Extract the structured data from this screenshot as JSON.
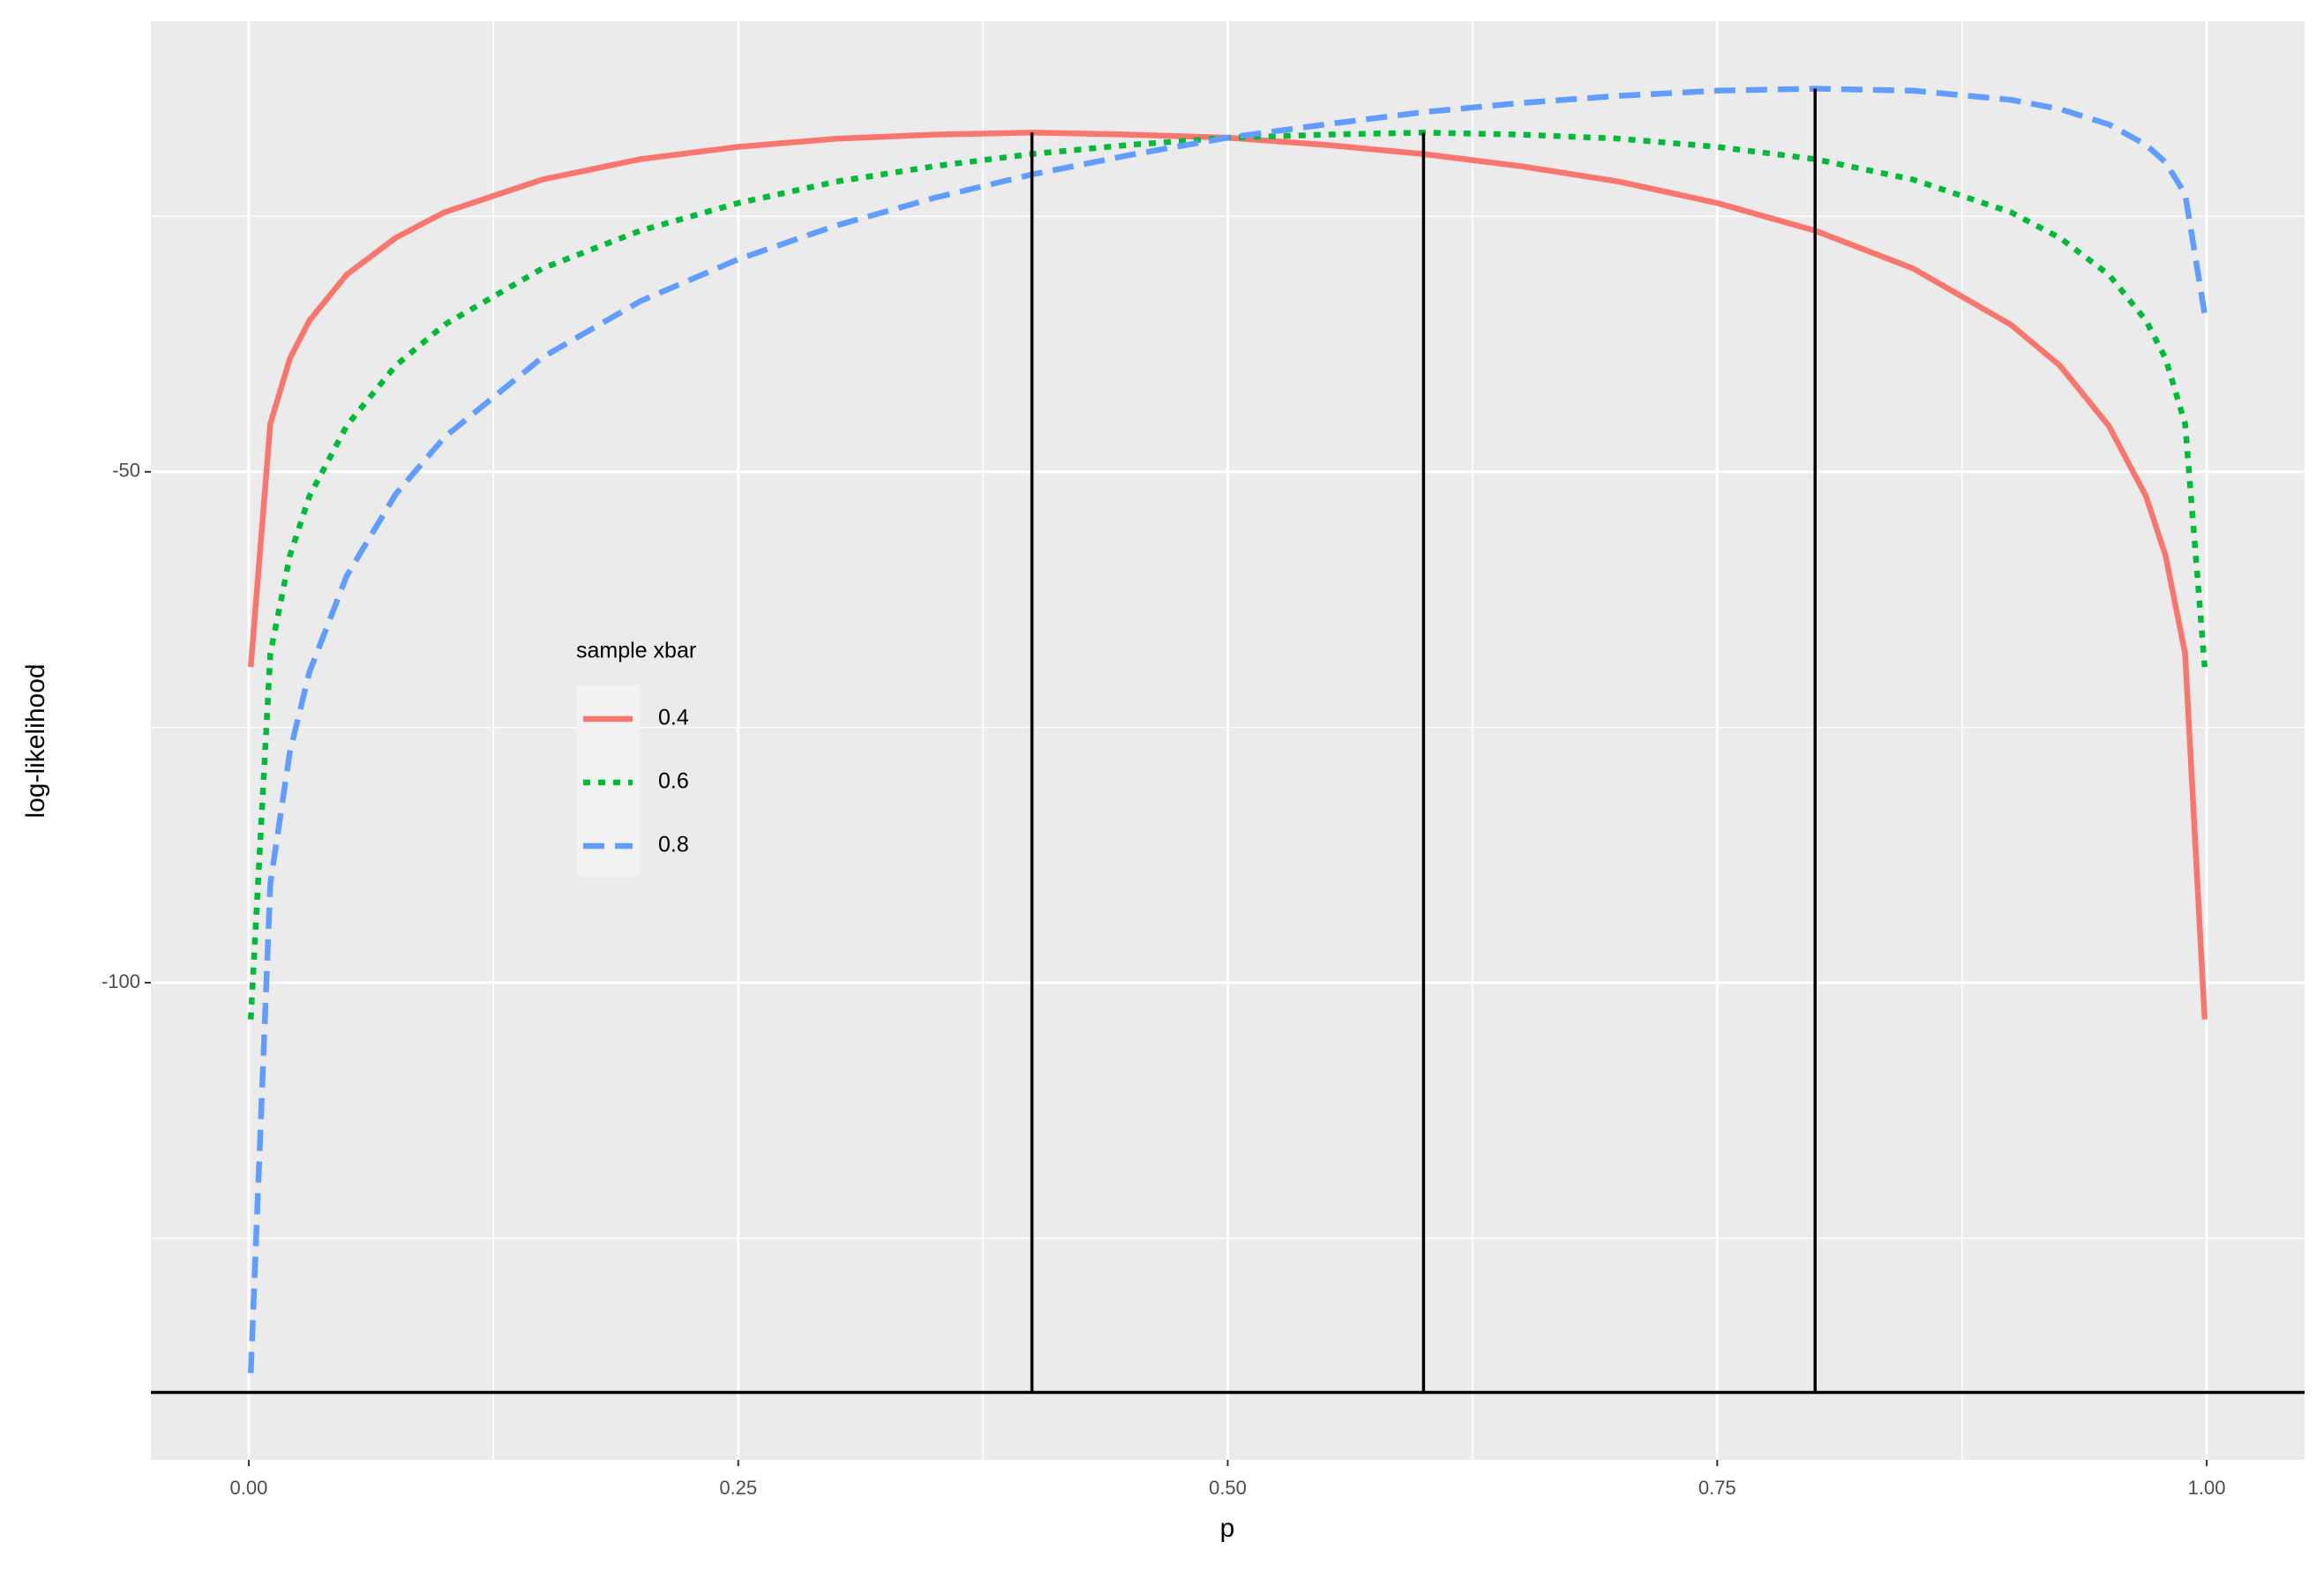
{
  "chart_data": {
    "type": "line",
    "xlabel": "p",
    "ylabel": "log-likelihood",
    "legend_title": "sample xbar",
    "legend_position": "inside-left",
    "grid": true,
    "background": "#EBEBEB",
    "xlim": [
      -0.05,
      1.05
    ],
    "ylim": [
      -146.7,
      -5.9
    ],
    "xticks": [
      {
        "value": 0,
        "label": "0.00"
      },
      {
        "value": 0.25,
        "label": "0.25"
      },
      {
        "value": 0.5,
        "label": "0.50"
      },
      {
        "value": 0.75,
        "label": "0.75"
      },
      {
        "value": 1,
        "label": "1.00"
      }
    ],
    "yticks": [
      -100,
      -50
    ],
    "x": [
      0.001,
      0.011,
      0.021,
      0.031,
      0.05,
      0.075,
      0.1,
      0.15,
      0.2,
      0.25,
      0.3,
      0.35,
      0.4,
      0.45,
      0.5,
      0.55,
      0.6,
      0.65,
      0.7,
      0.75,
      0.8,
      0.85,
      0.9,
      0.925,
      0.95,
      0.969,
      0.979,
      0.989,
      0.999
    ],
    "series": [
      {
        "name": "0.4",
        "color": "#F8766D",
        "linetype": "solid",
        "values": [
          -69.1,
          -45.3,
          -38.9,
          -35.2,
          -30.7,
          -27.1,
          -24.6,
          -21.4,
          -19.4,
          -18.2,
          -17.4,
          -17.0,
          -16.8,
          -17.0,
          -17.3,
          -18.0,
          -18.9,
          -20.1,
          -21.6,
          -23.7,
          -26.4,
          -30.1,
          -35.6,
          -39.6,
          -45.5,
          -52.4,
          -58.2,
          -67.8,
          -103.6
        ]
      },
      {
        "name": "0.6",
        "color": "#00BA38",
        "linetype": "dotted",
        "values": [
          -103.6,
          -67.8,
          -58.2,
          -52.4,
          -45.5,
          -39.6,
          -35.6,
          -30.1,
          -26.4,
          -23.7,
          -21.6,
          -20.1,
          -18.9,
          -18.0,
          -17.3,
          -17.0,
          -16.8,
          -17.0,
          -17.4,
          -18.2,
          -19.4,
          -21.4,
          -24.6,
          -27.1,
          -30.7,
          -35.2,
          -38.9,
          -45.3,
          -69.1
        ]
      },
      {
        "name": "0.8",
        "color": "#619CFF",
        "linetype": "dashed",
        "values": [
          -138.2,
          -90.3,
          -77.4,
          -69.6,
          -60.2,
          -52.2,
          -46.6,
          -38.8,
          -33.3,
          -29.2,
          -25.9,
          -23.2,
          -20.9,
          -19.0,
          -17.3,
          -16.0,
          -14.8,
          -13.9,
          -13.2,
          -12.7,
          -12.5,
          -12.7,
          -13.6,
          -14.5,
          -16.0,
          -18.0,
          -19.7,
          -22.8,
          -34.6
        ]
      }
    ],
    "hline": -140.1,
    "vlines": [
      {
        "x": 0.4,
        "y": -16.8
      },
      {
        "x": 0.6,
        "y": -16.8
      },
      {
        "x": 0.8,
        "y": -12.5
      }
    ]
  }
}
